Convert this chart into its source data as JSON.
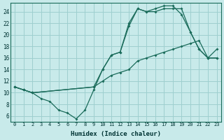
{
  "xlabel": "Humidex (Indice chaleur)",
  "background_color": "#c8eaea",
  "grid_color": "#9ecfcf",
  "line_color": "#1a6b5a",
  "xlim": [
    -0.5,
    23.5
  ],
  "ylim": [
    5.0,
    25.5
  ],
  "xticks": [
    0,
    1,
    2,
    3,
    4,
    5,
    6,
    7,
    8,
    9,
    10,
    11,
    12,
    13,
    14,
    15,
    16,
    17,
    18,
    19,
    20,
    21,
    22,
    23
  ],
  "yticks": [
    6,
    8,
    10,
    12,
    14,
    16,
    18,
    20,
    22,
    24
  ],
  "line1_x": [
    0,
    1,
    2,
    3,
    4,
    5,
    6,
    7,
    8,
    9,
    10,
    11,
    12,
    13,
    14,
    15,
    16,
    17,
    18,
    19,
    20,
    21,
    22,
    23
  ],
  "line1_y": [
    11.0,
    10.5,
    10.0,
    9.0,
    8.5,
    7.0,
    6.5,
    5.5,
    7.0,
    10.5,
    14.0,
    16.5,
    17.0,
    21.5,
    24.5,
    24.0,
    24.0,
    24.5,
    24.5,
    24.5,
    20.5,
    17.5,
    16.0,
    16.0
  ],
  "line2_x": [
    0,
    1,
    2,
    9,
    10,
    11,
    12,
    13,
    14,
    15,
    16,
    17,
    18,
    19,
    20,
    21,
    22,
    23
  ],
  "line2_y": [
    11.0,
    10.5,
    10.0,
    11.0,
    14.0,
    16.5,
    17.0,
    22.0,
    24.5,
    24.0,
    24.5,
    25.0,
    25.0,
    23.5,
    20.5,
    17.5,
    16.0,
    17.5
  ],
  "line3_x": [
    0,
    1,
    2,
    9,
    10,
    11,
    12,
    13,
    14,
    15,
    16,
    17,
    18,
    19,
    20,
    21,
    22,
    23
  ],
  "line3_y": [
    11.0,
    10.5,
    10.0,
    11.0,
    12.0,
    13.0,
    13.5,
    14.0,
    15.5,
    16.0,
    16.5,
    17.0,
    17.5,
    18.0,
    18.5,
    19.0,
    16.0,
    16.0
  ]
}
